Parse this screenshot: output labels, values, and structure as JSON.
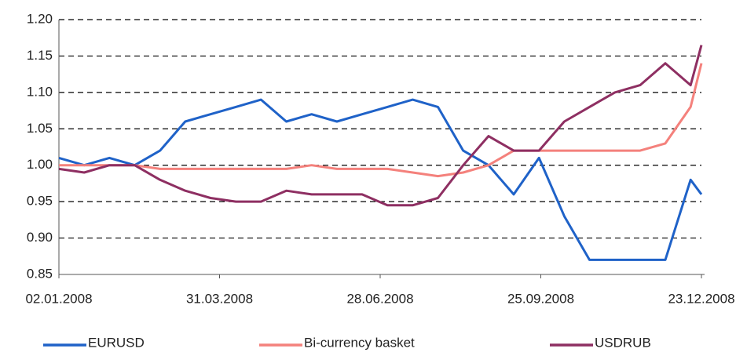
{
  "chart_data": {
    "type": "line",
    "x": [
      "02.01.2008",
      "16.01.2008",
      "30.01.2008",
      "13.02.2008",
      "27.02.2008",
      "12.03.2008",
      "26.03.2008",
      "09.04.2008",
      "23.04.2008",
      "07.05.2008",
      "21.05.2008",
      "04.06.2008",
      "18.06.2008",
      "02.07.2008",
      "16.07.2008",
      "30.07.2008",
      "13.08.2008",
      "27.08.2008",
      "10.09.2008",
      "24.09.2008",
      "08.10.2008",
      "22.10.2008",
      "05.11.2008",
      "19.11.2008",
      "03.12.2008",
      "17.12.2008",
      "23.12.2008"
    ],
    "series": [
      {
        "name": "EURUSD",
        "color": "#1f62c8",
        "values": [
          1.01,
          1.0,
          1.01,
          1.0,
          1.02,
          1.06,
          1.07,
          1.08,
          1.09,
          1.06,
          1.07,
          1.06,
          1.07,
          1.08,
          1.09,
          1.08,
          1.02,
          1.0,
          0.96,
          1.01,
          0.93,
          0.87,
          0.87,
          0.87,
          0.87,
          0.98,
          0.96
        ]
      },
      {
        "name": "Bi-currency basket",
        "color": "#f4817c",
        "values": [
          1.0,
          1.0,
          1.0,
          1.0,
          0.995,
          0.995,
          0.995,
          0.995,
          0.995,
          0.995,
          1.0,
          0.995,
          0.995,
          0.995,
          0.99,
          0.985,
          0.99,
          1.0,
          1.02,
          1.02,
          1.02,
          1.02,
          1.02,
          1.02,
          1.03,
          1.08,
          1.14
        ]
      },
      {
        "name": "USDRUB",
        "color": "#8e2f62",
        "values": [
          0.995,
          0.99,
          1.0,
          1.0,
          0.98,
          0.965,
          0.955,
          0.95,
          0.95,
          0.965,
          0.96,
          0.96,
          0.96,
          0.945,
          0.945,
          0.955,
          1.0,
          1.04,
          1.02,
          1.02,
          1.06,
          1.08,
          1.1,
          1.11,
          1.14,
          1.11,
          1.165
        ]
      }
    ],
    "xlim": [
      "02.01.2008",
      "23.12.2008"
    ],
    "xticks": [
      "02.01.2008",
      "31.03.2008",
      "28.06.2008",
      "25.09.2008",
      "23.12.2008"
    ],
    "ylim": [
      0.85,
      1.2
    ],
    "yticks": [
      0.85,
      {
        "value": 0.9,
        "label": "0.90"
      },
      0.95,
      {
        "value": 1.0,
        "label": "1.00"
      },
      1.05,
      {
        "value": 1.1,
        "label": "1.10"
      },
      1.15,
      {
        "value": 1.2,
        "label": "1.20"
      }
    ],
    "grid": true,
    "legend": "bottom"
  }
}
